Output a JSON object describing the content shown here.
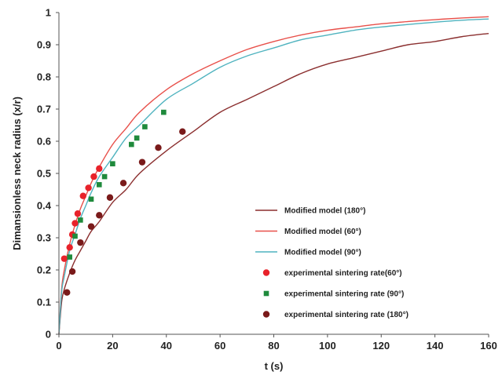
{
  "chart_data": {
    "type": "line",
    "title": "",
    "xlabel": "t (s)",
    "ylabel": "Dimansionless neck radius (x/r)",
    "xlim": [
      0,
      160
    ],
    "ylim": [
      0,
      1
    ],
    "x_ticks": [
      "0",
      "20",
      "40",
      "60",
      "80",
      "100",
      "120",
      "140",
      "160"
    ],
    "y_ticks": [
      "0",
      "0.1",
      "0.2",
      "0.3",
      "0.4",
      "0.5",
      "0.6",
      "0.7",
      "0.8",
      "0.9",
      "1"
    ],
    "grid": false,
    "legend_position": "lower-right (inside plot)",
    "series": [
      {
        "name": "Modified model (180°)",
        "kind": "line",
        "color": "#8b2f2f",
        "x": [
          0,
          1,
          2,
          4,
          6,
          8,
          10,
          12,
          15,
          20,
          25,
          30,
          40,
          50,
          60,
          70,
          80,
          90,
          100,
          110,
          120,
          130,
          140,
          150,
          160
        ],
        "y": [
          0,
          0.1,
          0.14,
          0.19,
          0.23,
          0.26,
          0.29,
          0.32,
          0.35,
          0.41,
          0.45,
          0.5,
          0.57,
          0.63,
          0.69,
          0.73,
          0.77,
          0.81,
          0.84,
          0.86,
          0.88,
          0.9,
          0.91,
          0.925,
          0.935
        ]
      },
      {
        "name": "Modified model (60°)",
        "kind": "line",
        "color": "#e8504a",
        "x": [
          0,
          1,
          2,
          4,
          6,
          8,
          10,
          12,
          15,
          20,
          25,
          30,
          40,
          50,
          60,
          70,
          80,
          90,
          100,
          110,
          120,
          130,
          140,
          150,
          160
        ],
        "y": [
          0,
          0.14,
          0.2,
          0.28,
          0.34,
          0.39,
          0.43,
          0.47,
          0.52,
          0.59,
          0.64,
          0.69,
          0.76,
          0.81,
          0.85,
          0.885,
          0.91,
          0.93,
          0.945,
          0.955,
          0.965,
          0.972,
          0.978,
          0.983,
          0.987
        ]
      },
      {
        "name": "Modified model (90°)",
        "kind": "line",
        "color": "#4fb3bf",
        "x": [
          0,
          1,
          2,
          4,
          6,
          8,
          10,
          12,
          15,
          20,
          25,
          30,
          40,
          50,
          60,
          70,
          80,
          90,
          100,
          110,
          120,
          130,
          140,
          150,
          160
        ],
        "y": [
          0,
          0.13,
          0.18,
          0.26,
          0.31,
          0.36,
          0.4,
          0.44,
          0.49,
          0.55,
          0.61,
          0.65,
          0.73,
          0.78,
          0.83,
          0.865,
          0.89,
          0.915,
          0.93,
          0.945,
          0.955,
          0.963,
          0.97,
          0.976,
          0.98
        ]
      },
      {
        "name": "experimental sintering rate(60°)",
        "kind": "scatter",
        "marker": "circle",
        "color": "#e8222a",
        "x": [
          2,
          4,
          5,
          6,
          7,
          9,
          11,
          13,
          15
        ],
        "y": [
          0.235,
          0.27,
          0.31,
          0.345,
          0.375,
          0.43,
          0.455,
          0.49,
          0.515
        ]
      },
      {
        "name": "experimental sintering rate (90°)",
        "kind": "scatter",
        "marker": "square",
        "color": "#1f8a3c",
        "x": [
          4,
          6,
          8,
          12,
          15,
          17,
          20,
          27,
          29,
          32,
          39
        ],
        "y": [
          0.24,
          0.305,
          0.355,
          0.42,
          0.465,
          0.49,
          0.53,
          0.59,
          0.61,
          0.645,
          0.69
        ]
      },
      {
        "name": "experimental sintering rate (180°)",
        "kind": "scatter",
        "marker": "circle",
        "color": "#7a1a1a",
        "x": [
          3,
          5,
          8,
          12,
          15,
          19,
          24,
          31,
          37,
          46
        ],
        "y": [
          0.13,
          0.195,
          0.285,
          0.335,
          0.37,
          0.425,
          0.47,
          0.535,
          0.58,
          0.63
        ]
      }
    ]
  }
}
